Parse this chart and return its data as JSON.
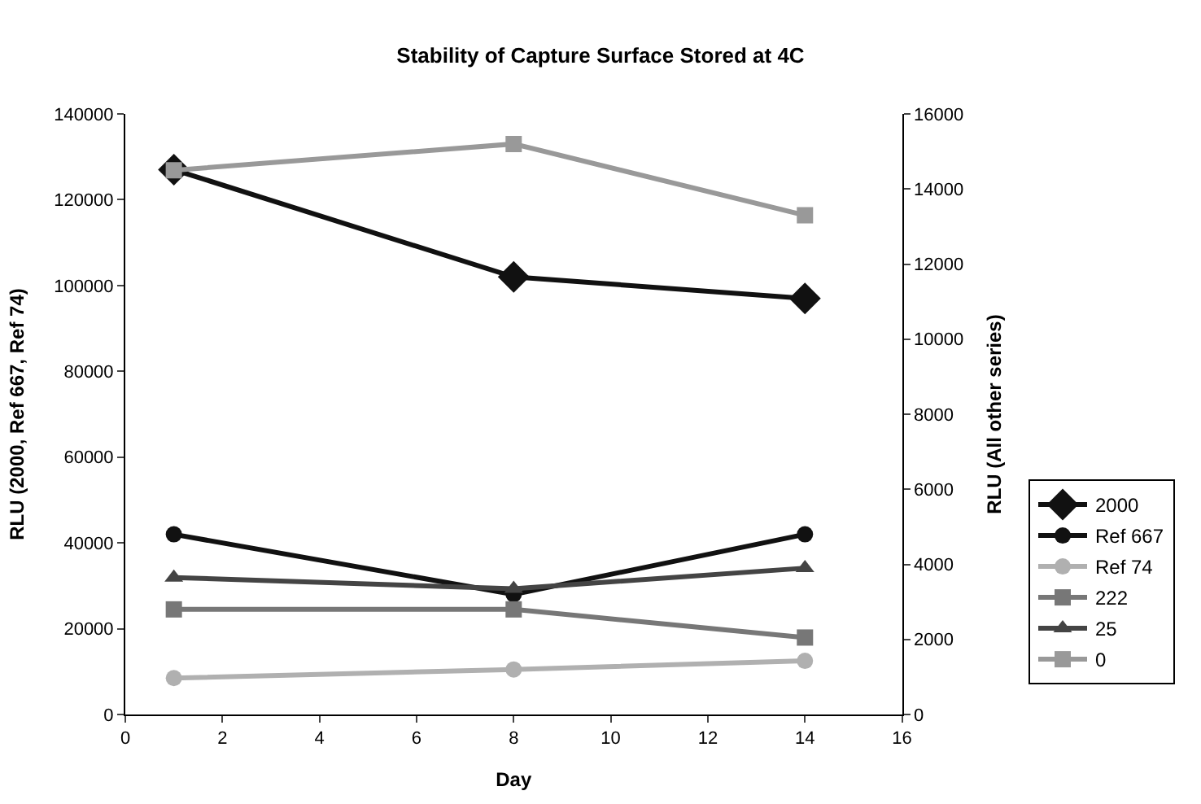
{
  "chart_data": {
    "type": "line",
    "title": "Stability of Capture Surface Stored at 4C",
    "xlabel": "Day",
    "ylabel": "RLU (2000, Ref 667, Ref 74)",
    "y2label": "RLU (All other series)",
    "x": [
      1,
      8,
      14
    ],
    "xlim": [
      0,
      16
    ],
    "xticks": [
      0,
      2,
      4,
      6,
      8,
      10,
      12,
      14,
      16
    ],
    "ylim": [
      0,
      140000
    ],
    "yticks": [
      0,
      20000,
      40000,
      60000,
      80000,
      100000,
      120000,
      140000
    ],
    "y2lim": [
      0,
      16000
    ],
    "y2ticks": [
      0,
      2000,
      4000,
      6000,
      8000,
      10000,
      12000,
      14000,
      16000
    ],
    "legend": "right",
    "series": [
      {
        "name": "2000",
        "color": "#111111",
        "marker": "diamond",
        "values": [
          127000,
          102000,
          97000
        ]
      },
      {
        "name": "Ref 667",
        "color": "#111111",
        "marker": "circle",
        "values": [
          42000,
          28000,
          42000
        ]
      },
      {
        "name": "Ref 74",
        "color": "#b0b0b0",
        "marker": "circle",
        "values": [
          8500,
          10500,
          12500
        ]
      },
      {
        "name": "222",
        "color": "#777777",
        "marker": "square",
        "axis": "y2",
        "values": [
          2800,
          2800,
          2050
        ]
      },
      {
        "name": "25",
        "color": "#444444",
        "marker": "triangle",
        "axis": "y2",
        "values": [
          3650,
          3350,
          3900
        ]
      },
      {
        "name": "0",
        "color": "#999999",
        "marker": "square",
        "axis": "y2",
        "values": [
          14500,
          15200,
          13300
        ]
      }
    ]
  }
}
